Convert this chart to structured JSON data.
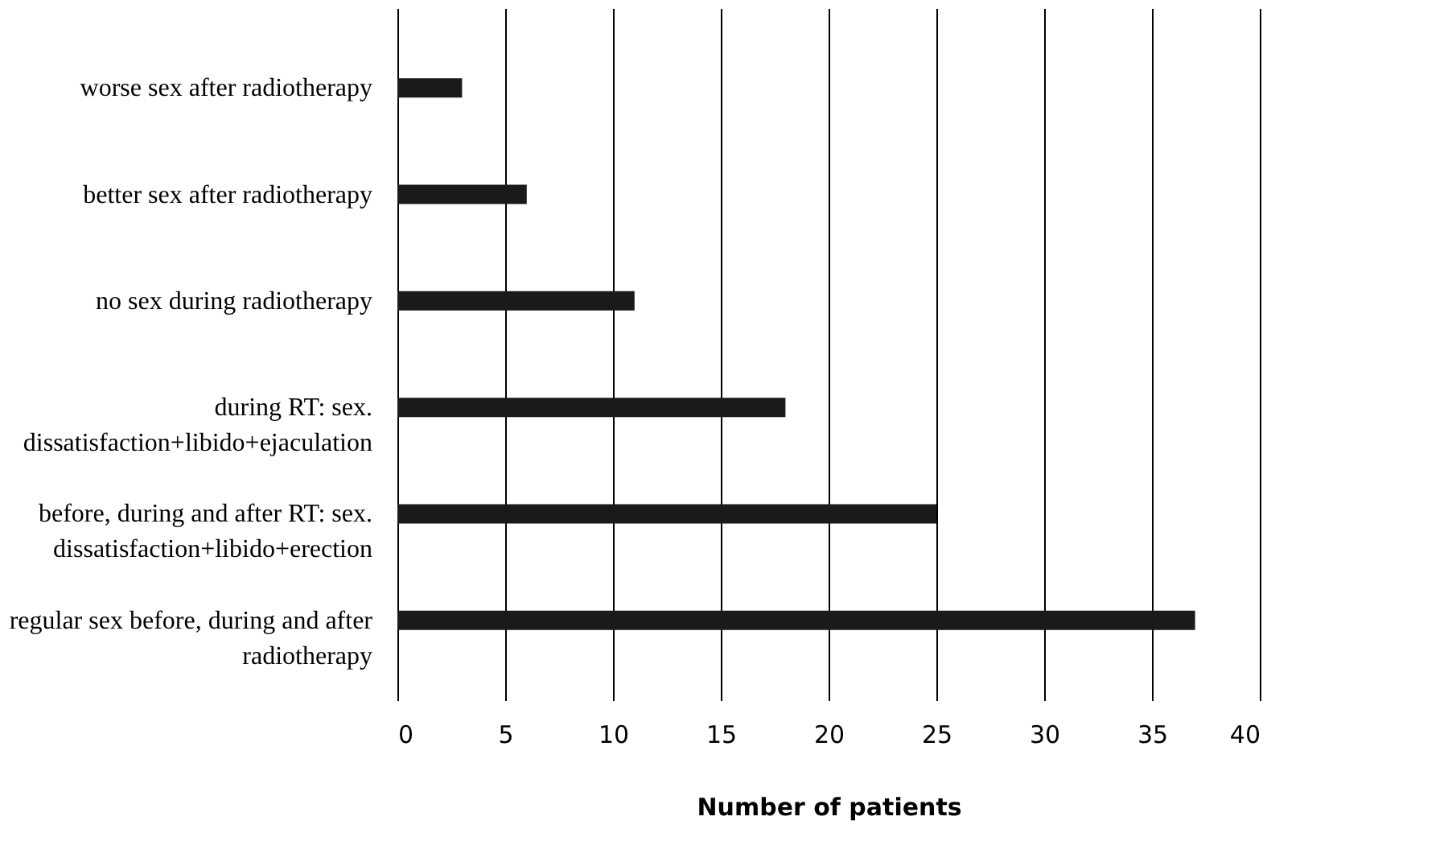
{
  "chart_data": {
    "type": "bar",
    "orientation": "horizontal",
    "xlabel": "Number of patients",
    "categories": [
      "worse sex after radiotherapy",
      "better sex after radiotherapy",
      "no sex during radiotherapy",
      "during RT: sex.\ndissatisfaction+libido+ejaculation",
      "before, during and after RT: sex.\ndissatisfaction+libido+erection",
      "regular sex before, during and after\nradiotherapy"
    ],
    "values": [
      3,
      6,
      11,
      18,
      25,
      37
    ],
    "color": "#1a1a1a",
    "xlim": [
      0,
      40
    ],
    "xticks": [
      0,
      5,
      10,
      15,
      20,
      25,
      30,
      35,
      40
    ],
    "grid": "x"
  }
}
